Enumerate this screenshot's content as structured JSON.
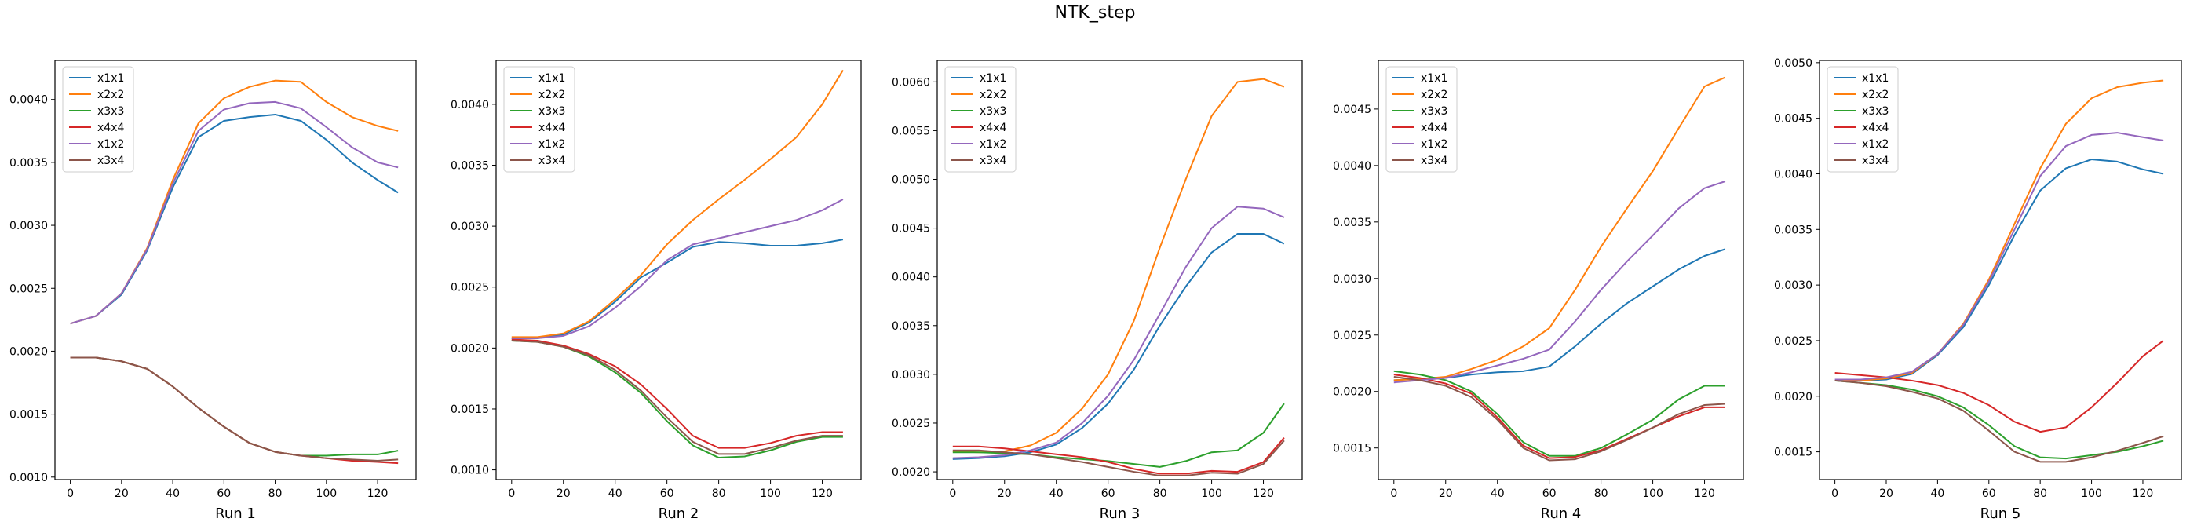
{
  "figure_title": "NTK_step",
  "colors": {
    "x1x1": "#1f77b4",
    "x2x2": "#ff7f0e",
    "x3x3": "#2ca02c",
    "x4x4": "#d62728",
    "x1x2": "#9467bd",
    "x3x4": "#8c564b"
  },
  "chart_data": [
    {
      "type": "line",
      "xlabel": "Run 1",
      "xlim": [
        -6,
        135
      ],
      "ylim": [
        0.00098,
        0.00431
      ],
      "xticks": [
        0,
        20,
        40,
        60,
        80,
        100,
        120
      ],
      "yticks": [
        0.001,
        0.0015,
        0.002,
        0.0025,
        0.003,
        0.0035,
        0.004
      ],
      "ytick_labels": [
        "0.0010",
        "0.0015",
        "0.0020",
        "0.0025",
        "0.0030",
        "0.0035",
        "0.0040"
      ],
      "legend_position": "upper-left",
      "x": [
        0,
        10,
        20,
        30,
        40,
        50,
        60,
        70,
        80,
        90,
        100,
        110,
        120,
        128
      ],
      "series": [
        {
          "name": "x1x1",
          "values": [
            0.00222,
            0.00228,
            0.00245,
            0.0028,
            0.0033,
            0.0037,
            0.00383,
            0.00386,
            0.00388,
            0.00383,
            0.00368,
            0.0035,
            0.00336,
            0.00326
          ]
        },
        {
          "name": "x2x2",
          "values": [
            0.00222,
            0.00228,
            0.00246,
            0.00282,
            0.00336,
            0.00381,
            0.00401,
            0.0041,
            0.00415,
            0.00414,
            0.00398,
            0.00386,
            0.00379,
            0.00375
          ]
        },
        {
          "name": "x3x3",
          "values": [
            0.00195,
            0.00195,
            0.00192,
            0.00186,
            0.00172,
            0.00155,
            0.0014,
            0.00127,
            0.0012,
            0.00117,
            0.00117,
            0.00118,
            0.00118,
            0.00121
          ]
        },
        {
          "name": "x4x4",
          "values": [
            0.00195,
            0.00195,
            0.00192,
            0.00186,
            0.00172,
            0.00155,
            0.0014,
            0.00127,
            0.0012,
            0.00117,
            0.00115,
            0.00113,
            0.00112,
            0.00111
          ]
        },
        {
          "name": "x1x2",
          "values": [
            0.00222,
            0.00228,
            0.00246,
            0.00281,
            0.00333,
            0.00375,
            0.00392,
            0.00397,
            0.00398,
            0.00393,
            0.00378,
            0.00362,
            0.0035,
            0.00346
          ]
        },
        {
          "name": "x3x4",
          "values": [
            0.00195,
            0.00195,
            0.00192,
            0.00186,
            0.00172,
            0.00155,
            0.0014,
            0.00127,
            0.0012,
            0.00117,
            0.00115,
            0.00114,
            0.00113,
            0.00114
          ]
        }
      ]
    },
    {
      "type": "line",
      "xlabel": "Run 2",
      "xlim": [
        -6,
        135
      ],
      "ylim": [
        0.00092,
        0.00436
      ],
      "xticks": [
        0,
        20,
        40,
        60,
        80,
        100,
        120
      ],
      "yticks": [
        0.001,
        0.0015,
        0.002,
        0.0025,
        0.003,
        0.0035,
        0.004
      ],
      "ytick_labels": [
        "0.0010",
        "0.0015",
        "0.0020",
        "0.0025",
        "0.0030",
        "0.0035",
        "0.0040"
      ],
      "legend_position": "upper-left",
      "x": [
        0,
        10,
        20,
        30,
        40,
        50,
        60,
        70,
        80,
        90,
        100,
        110,
        120,
        128
      ],
      "series": [
        {
          "name": "x1x1",
          "values": [
            0.00208,
            0.00208,
            0.00211,
            0.00221,
            0.00238,
            0.00258,
            0.0027,
            0.00283,
            0.00287,
            0.00286,
            0.00284,
            0.00284,
            0.00286,
            0.00289
          ]
        },
        {
          "name": "x2x2",
          "values": [
            0.00209,
            0.00209,
            0.00212,
            0.00222,
            0.0024,
            0.0026,
            0.00285,
            0.00305,
            0.00322,
            0.00338,
            0.00355,
            0.00373,
            0.004,
            0.00428
          ]
        },
        {
          "name": "x3x3",
          "values": [
            0.00206,
            0.00205,
            0.00201,
            0.00193,
            0.0018,
            0.00163,
            0.0014,
            0.0012,
            0.0011,
            0.00111,
            0.00116,
            0.00123,
            0.00127,
            0.00127
          ]
        },
        {
          "name": "x4x4",
          "values": [
            0.00207,
            0.00206,
            0.00202,
            0.00195,
            0.00185,
            0.0017,
            0.0015,
            0.00128,
            0.00118,
            0.00118,
            0.00122,
            0.00128,
            0.00131,
            0.00131
          ]
        },
        {
          "name": "x1x2",
          "values": [
            0.00208,
            0.00208,
            0.0021,
            0.00218,
            0.00233,
            0.00251,
            0.00272,
            0.00285,
            0.0029,
            0.00295,
            0.003,
            0.00305,
            0.00313,
            0.00322
          ]
        },
        {
          "name": "x3x4",
          "values": [
            0.00206,
            0.00205,
            0.00201,
            0.00194,
            0.00182,
            0.00165,
            0.00143,
            0.00123,
            0.00113,
            0.00113,
            0.00118,
            0.00124,
            0.00128,
            0.00128
          ]
        }
      ]
    },
    {
      "type": "line",
      "xlabel": "Run 3",
      "xlim": [
        -6,
        135
      ],
      "ylim": [
        0.00192,
        0.00622
      ],
      "xticks": [
        0,
        20,
        40,
        60,
        80,
        100,
        120
      ],
      "yticks": [
        0.002,
        0.0025,
        0.003,
        0.0035,
        0.004,
        0.0045,
        0.005,
        0.0055,
        0.006
      ],
      "ytick_labels": [
        "0.0020",
        "0.0025",
        "0.0030",
        "0.0035",
        "0.0040",
        "0.0045",
        "0.0050",
        "0.0055",
        "0.0060"
      ],
      "legend_position": "upper-left",
      "x": [
        0,
        10,
        20,
        30,
        40,
        50,
        60,
        70,
        80,
        90,
        100,
        110,
        120,
        128
      ],
      "series": [
        {
          "name": "x1x1",
          "values": [
            0.00213,
            0.00214,
            0.00216,
            0.0022,
            0.00228,
            0.00245,
            0.0027,
            0.00305,
            0.0035,
            0.0039,
            0.00425,
            0.00444,
            0.00444,
            0.00434
          ]
        },
        {
          "name": "x2x2",
          "values": [
            0.00221,
            0.0022,
            0.00221,
            0.00227,
            0.0024,
            0.00265,
            0.003,
            0.00355,
            0.0043,
            0.005,
            0.00565,
            0.006,
            0.00603,
            0.00595
          ]
        },
        {
          "name": "x3x3",
          "values": [
            0.0022,
            0.0022,
            0.00219,
            0.00218,
            0.00215,
            0.00213,
            0.00211,
            0.00208,
            0.00205,
            0.00211,
            0.0022,
            0.00222,
            0.0024,
            0.0027
          ]
        },
        {
          "name": "x4x4",
          "values": [
            0.00226,
            0.00226,
            0.00224,
            0.00221,
            0.00218,
            0.00215,
            0.0021,
            0.00203,
            0.00198,
            0.00198,
            0.00201,
            0.002,
            0.0021,
            0.00235
          ]
        },
        {
          "name": "x1x2",
          "values": [
            0.00214,
            0.00215,
            0.00217,
            0.00222,
            0.0023,
            0.0025,
            0.00278,
            0.00315,
            0.00362,
            0.0041,
            0.0045,
            0.00472,
            0.0047,
            0.00461
          ]
        },
        {
          "name": "x3x4",
          "values": [
            0.00222,
            0.00222,
            0.0022,
            0.00218,
            0.00214,
            0.0021,
            0.00205,
            0.002,
            0.00196,
            0.00196,
            0.00199,
            0.00198,
            0.00208,
            0.00232
          ]
        }
      ]
    },
    {
      "type": "line",
      "xlabel": "Run 4",
      "xlim": [
        -6,
        135
      ],
      "ylim": [
        0.00122,
        0.00493
      ],
      "xticks": [
        0,
        20,
        40,
        60,
        80,
        100,
        120
      ],
      "yticks": [
        0.0015,
        0.002,
        0.0025,
        0.003,
        0.0035,
        0.004,
        0.0045
      ],
      "ytick_labels": [
        "0.0015",
        "0.0020",
        "0.0025",
        "0.0030",
        "0.0035",
        "0.0040",
        "0.0045"
      ],
      "legend_position": "upper-left",
      "x": [
        0,
        10,
        20,
        30,
        40,
        50,
        60,
        70,
        80,
        90,
        100,
        110,
        120,
        128
      ],
      "series": [
        {
          "name": "x1x1",
          "values": [
            0.0021,
            0.00211,
            0.00212,
            0.00215,
            0.00217,
            0.00218,
            0.00222,
            0.0024,
            0.0026,
            0.00278,
            0.00293,
            0.00308,
            0.0032,
            0.00326
          ]
        },
        {
          "name": "x2x2",
          "values": [
            0.0021,
            0.00211,
            0.00213,
            0.0022,
            0.00228,
            0.0024,
            0.00256,
            0.0029,
            0.00328,
            0.00362,
            0.00395,
            0.00433,
            0.0047,
            0.00478
          ]
        },
        {
          "name": "x3x3",
          "values": [
            0.00218,
            0.00215,
            0.0021,
            0.002,
            0.0018,
            0.00155,
            0.00143,
            0.00143,
            0.0015,
            0.00162,
            0.00175,
            0.00193,
            0.00205,
            0.00205
          ]
        },
        {
          "name": "x4x4",
          "values": [
            0.00215,
            0.00212,
            0.00207,
            0.00198,
            0.00177,
            0.00152,
            0.00141,
            0.00142,
            0.00148,
            0.00158,
            0.00168,
            0.00178,
            0.00186,
            0.00186
          ]
        },
        {
          "name": "x1x2",
          "values": [
            0.00208,
            0.0021,
            0.00212,
            0.00217,
            0.00223,
            0.00229,
            0.00237,
            0.00262,
            0.0029,
            0.00315,
            0.00338,
            0.00362,
            0.0038,
            0.00386
          ]
        },
        {
          "name": "x3x4",
          "values": [
            0.00213,
            0.0021,
            0.00205,
            0.00195,
            0.00175,
            0.0015,
            0.00139,
            0.0014,
            0.00147,
            0.00157,
            0.00168,
            0.0018,
            0.00188,
            0.00189
          ]
        }
      ]
    },
    {
      "type": "line",
      "xlabel": "Run 5",
      "xlim": [
        -6,
        135
      ],
      "ylim": [
        0.00125,
        0.00502
      ],
      "xticks": [
        0,
        20,
        40,
        60,
        80,
        100,
        120
      ],
      "yticks": [
        0.0015,
        0.002,
        0.0025,
        0.003,
        0.0035,
        0.004,
        0.0045,
        0.005
      ],
      "ytick_labels": [
        "0.0015",
        "0.0020",
        "0.0025",
        "0.0030",
        "0.0035",
        "0.0040",
        "0.0045",
        "0.0050"
      ],
      "legend_position": "upper-left",
      "x": [
        0,
        10,
        20,
        30,
        40,
        50,
        60,
        70,
        80,
        90,
        100,
        110,
        120,
        128
      ],
      "series": [
        {
          "name": "x1x1",
          "values": [
            0.00214,
            0.00214,
            0.00215,
            0.0022,
            0.00237,
            0.00262,
            0.003,
            0.00345,
            0.00385,
            0.00405,
            0.00413,
            0.00411,
            0.00404,
            0.004
          ]
        },
        {
          "name": "x2x2",
          "values": [
            0.00214,
            0.00214,
            0.00216,
            0.00221,
            0.00238,
            0.00265,
            0.00305,
            0.00355,
            0.00405,
            0.00445,
            0.00468,
            0.00478,
            0.00482,
            0.00484
          ]
        },
        {
          "name": "x3x3",
          "values": [
            0.00214,
            0.00212,
            0.0021,
            0.00206,
            0.002,
            0.0019,
            0.00174,
            0.00155,
            0.00145,
            0.00144,
            0.00147,
            0.0015,
            0.00155,
            0.0016
          ]
        },
        {
          "name": "x4x4",
          "values": [
            0.00221,
            0.00219,
            0.00217,
            0.00214,
            0.0021,
            0.00203,
            0.00192,
            0.00177,
            0.00168,
            0.00172,
            0.0019,
            0.00212,
            0.00236,
            0.0025
          ]
        },
        {
          "name": "x1x2",
          "values": [
            0.00215,
            0.00215,
            0.00217,
            0.00222,
            0.00238,
            0.00264,
            0.00303,
            0.0035,
            0.00398,
            0.00425,
            0.00435,
            0.00437,
            0.00433,
            0.0043
          ]
        },
        {
          "name": "x3x4",
          "values": [
            0.00214,
            0.00212,
            0.00209,
            0.00204,
            0.00198,
            0.00187,
            0.00169,
            0.0015,
            0.00141,
            0.00141,
            0.00145,
            0.00151,
            0.00158,
            0.00164
          ]
        }
      ]
    }
  ]
}
